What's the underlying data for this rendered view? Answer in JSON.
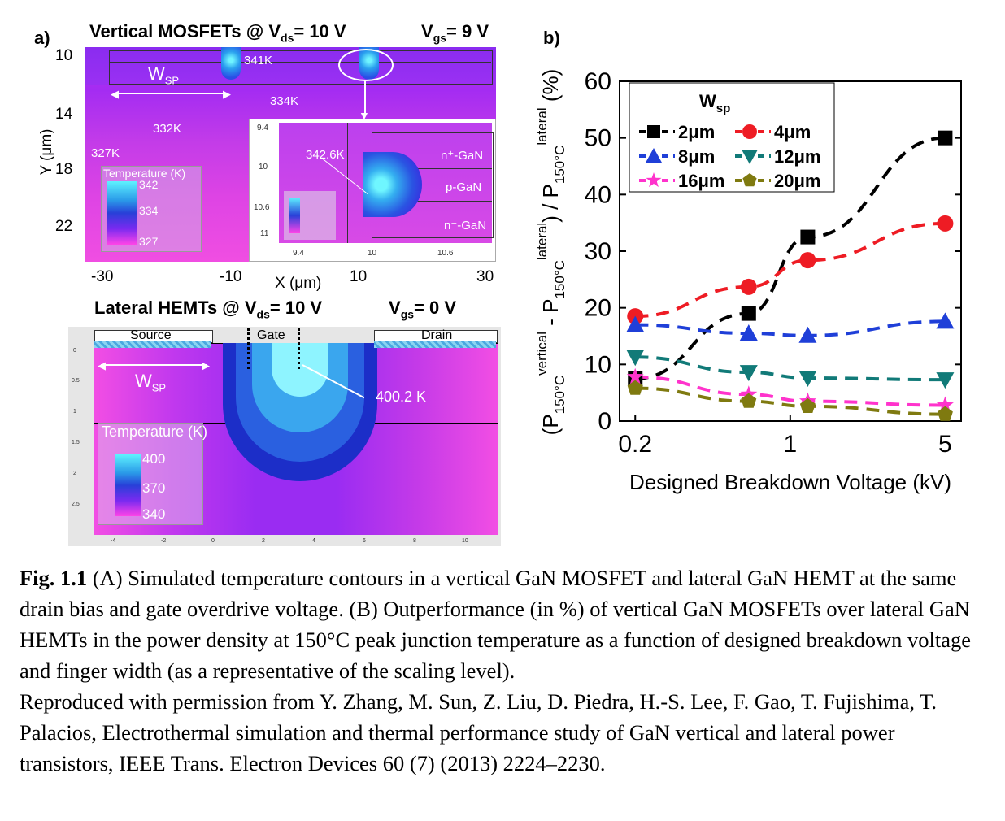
{
  "panel_a": {
    "label": "a)",
    "vertical_title": "Vertical MOSFETs @ V",
    "vertical_title_sub": "ds",
    "vertical_title_rest": "= 10 V",
    "vertical_vgs": "V",
    "vertical_vgs_sub": "gs",
    "vertical_vgs_rest": "= 9 V",
    "y_axis_label": "Y (μm)",
    "y_ticks": [
      "10",
      "14",
      "18",
      "22"
    ],
    "x_axis_label": "X (μm)",
    "x_ticks": [
      "-30",
      "-10",
      "10",
      "30"
    ],
    "wsp_label": "W",
    "wsp_sub": "SP",
    "temps": [
      "341K",
      "334K",
      "332K",
      "327K"
    ],
    "legend_title": "Temperature (K)",
    "legend_values": [
      "342",
      "334",
      "327"
    ],
    "inset_peak": "342.6K",
    "inset_layers": [
      "n⁺-GaN",
      "p-GaN",
      "n⁻-GaN"
    ],
    "inset_y_ticks": [
      "9.4",
      "10",
      "10.6",
      "11"
    ],
    "inset_x_ticks": [
      "9.4",
      "10",
      "10.6"
    ],
    "lateral_title": "Lateral HEMTs @ V",
    "lateral_title_sub": "ds",
    "lateral_title_rest": "= 10 V",
    "lateral_vgs": "V",
    "lateral_vgs_sub": "gs",
    "lateral_vgs_rest": "= 0 V",
    "terminals": [
      "Source",
      "Gate",
      "Drain"
    ],
    "lateral_peak": "400.2 K",
    "lateral_legend_title": "Temperature (K)",
    "lateral_legend_values": [
      "400",
      "370",
      "340"
    ],
    "lateral_y_ticks": [
      "0",
      "0.5",
      "1",
      "1.5",
      "2",
      "2.5"
    ],
    "lateral_x_ticks": [
      "-4",
      "-2",
      "0",
      "2",
      "4",
      "6",
      "8",
      "10"
    ]
  },
  "panel_b": {
    "label": "b)",
    "legend_title": "W",
    "legend_title_sub": "sp"
  },
  "chart_data": {
    "type": "line",
    "xlabel": "Designed Breakdown Voltage (kV)",
    "ylabel": "(P150°C vertical - P150°C lateral) / P150°C lateral (%)",
    "x_scale": "log",
    "xlim": [
      0.2,
      5
    ],
    "x_ticks": [
      "0.2",
      "1",
      "5"
    ],
    "ylim": [
      0,
      60
    ],
    "y_ticks": [
      "0",
      "10",
      "20",
      "30",
      "40",
      "50",
      "60"
    ],
    "legend_position": "top-left",
    "series": [
      {
        "name": "2μm",
        "color": "#000000",
        "marker": "square",
        "x": [
          0.2,
          0.65,
          1.2,
          5
        ],
        "y": [
          7.5,
          19,
          32.5,
          50
        ]
      },
      {
        "name": "4μm",
        "color": "#ee1c24",
        "marker": "circle",
        "x": [
          0.2,
          0.65,
          1.2,
          5
        ],
        "y": [
          18.5,
          23.7,
          28.4,
          34.9
        ]
      },
      {
        "name": "8μm",
        "color": "#1f3fd8",
        "marker": "triangle-up",
        "x": [
          0.2,
          0.65,
          1.2,
          5
        ],
        "y": [
          17,
          15.5,
          15.1,
          17.6
        ]
      },
      {
        "name": "12μm",
        "color": "#117a78",
        "marker": "triangle-down",
        "x": [
          0.2,
          0.65,
          1.2,
          5
        ],
        "y": [
          11.3,
          8.6,
          7.6,
          7.3
        ]
      },
      {
        "name": "16μm",
        "color": "#ff33cc",
        "marker": "star",
        "x": [
          0.2,
          0.65,
          1.2,
          5
        ],
        "y": [
          7.8,
          4.7,
          3.5,
          2.8
        ]
      },
      {
        "name": "20μm",
        "color": "#7f7a10",
        "marker": "pentagon",
        "x": [
          0.2,
          0.65,
          1.2,
          5
        ],
        "y": [
          5.8,
          3.5,
          2.6,
          1.2
        ]
      }
    ]
  },
  "caption": {
    "fig_label": "Fig. 1.1",
    "text": " (A) Simulated temperature contours in a vertical GaN MOSFET and lateral GaN HEMT at the same drain bias and gate overdrive voltage. (B) Outperformance (in %) of vertical GaN MOSFETs over lateral GaN HEMTs in the power density at 150°C peak junction temperature as a function of designed breakdown voltage and finger width (as a representative of the scaling level).",
    "credit": "Reproduced with permission from Y. Zhang, M. Sun, Z. Liu, D. Piedra, H.-S. Lee, F. Gao, T. Fujishima, T. Palacios, Electrothermal simulation and thermal performance study of GaN vertical and lateral power transistors, IEEE Trans. Electron Devices 60 (7) (2013) 2224–2230."
  }
}
